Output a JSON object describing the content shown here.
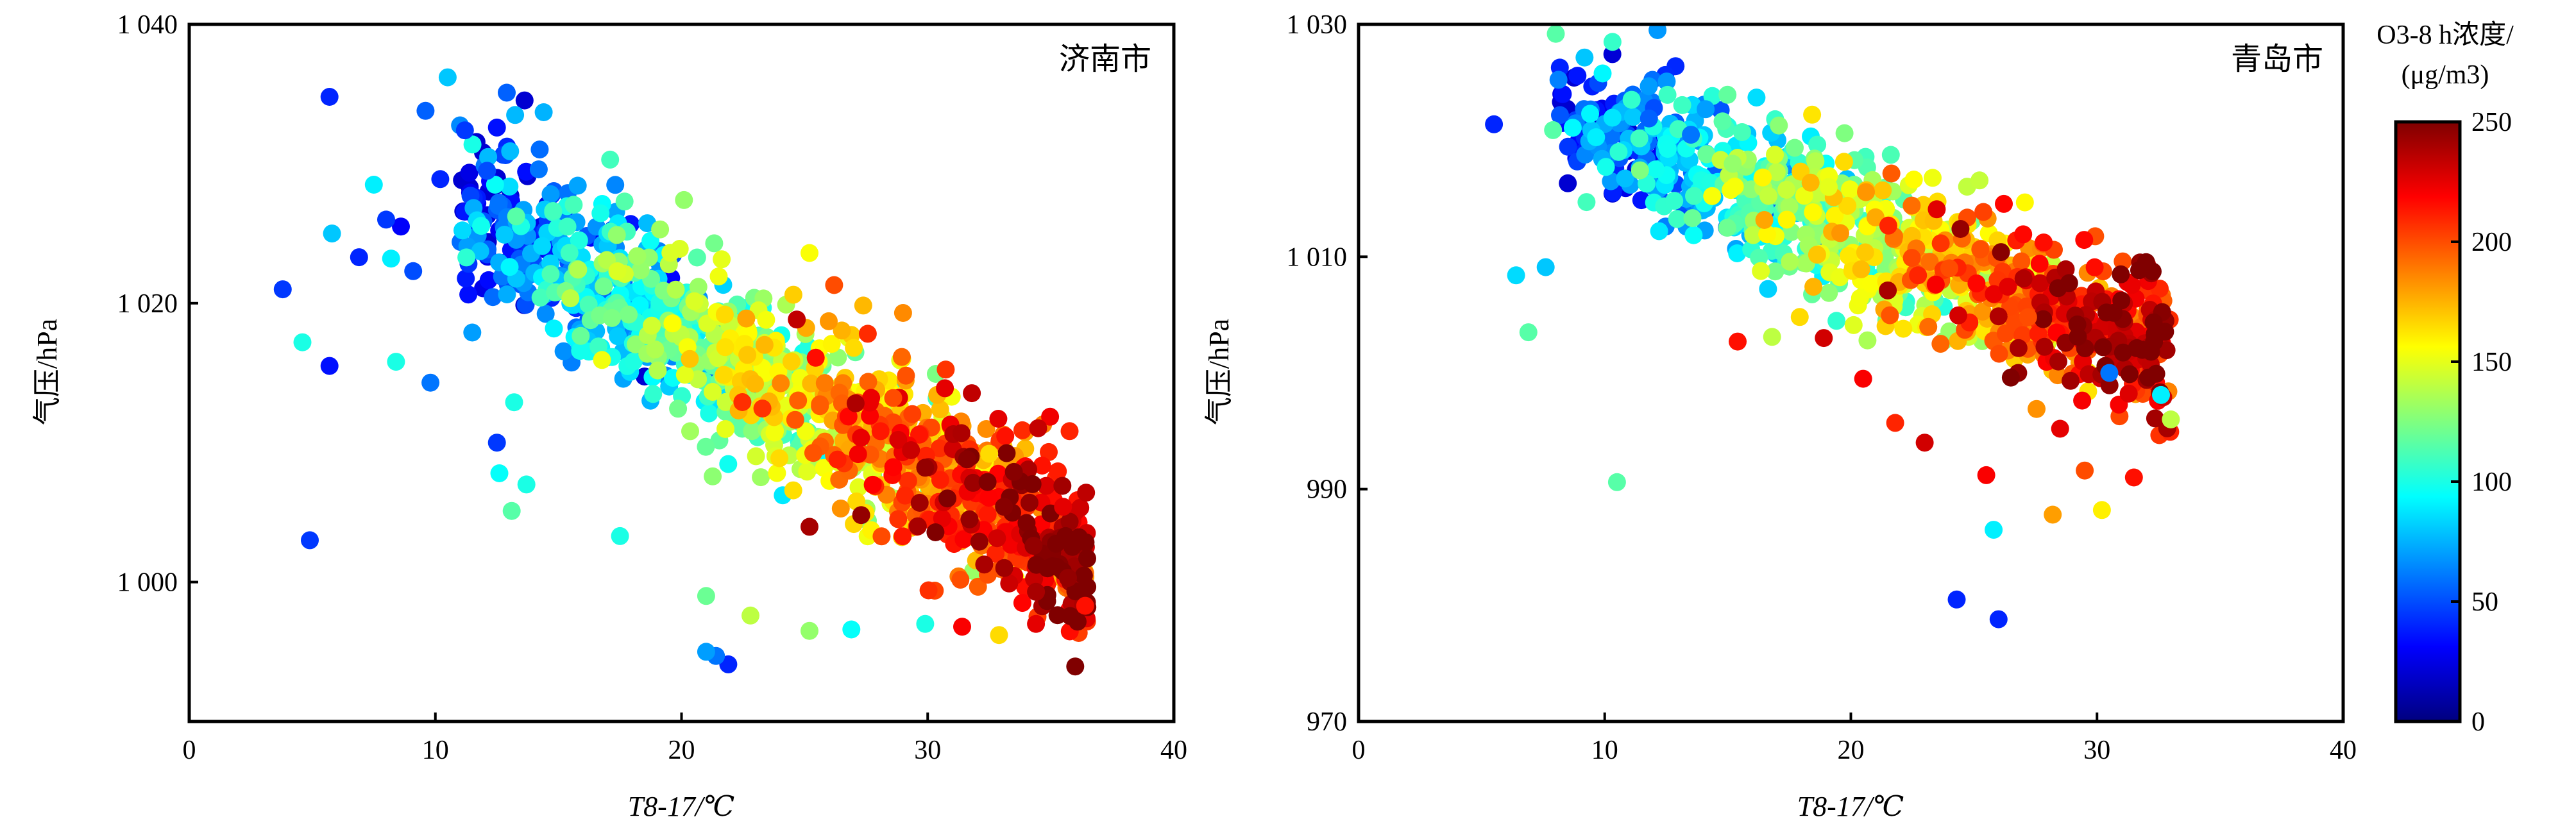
{
  "chart_data": [
    {
      "type": "scatter",
      "panel_label": "济南市",
      "xlabel": "T8-17/℃",
      "ylabel": "气压/hPa",
      "xlim": [
        0,
        40
      ],
      "ylim": [
        990,
        1040
      ],
      "xticks": [
        "0",
        "10",
        "20",
        "30",
        "40"
      ],
      "yticks": [
        "1 000",
        "1 020",
        "1 040"
      ],
      "ytick_values": [
        1000,
        1020,
        1040
      ],
      "color_by": "O3-8 h浓度",
      "trend": "pressure decreases as temperature rises; high O3 (red/dark red) concentrated at 27-36 ℃ and 1000-1010 hPa, low O3 (blue) at 4-15 ℃ and 1015-1037 hPa",
      "points": [
        {
          "x": 5.7,
          "y": 1034.8,
          "o3": 40
        },
        {
          "x": 10.5,
          "y": 1036.2,
          "o3": 80
        },
        {
          "x": 12.9,
          "y": 1035.1,
          "o3": 55
        },
        {
          "x": 9.6,
          "y": 1033.8,
          "o3": 55
        },
        {
          "x": 11.2,
          "y": 1032.4,
          "o3": 45
        },
        {
          "x": 12.5,
          "y": 1032.6,
          "o3": 35
        },
        {
          "x": 7.5,
          "y": 1028.5,
          "o3": 90
        },
        {
          "x": 10.2,
          "y": 1028.9,
          "o3": 40
        },
        {
          "x": 12.1,
          "y": 1029.5,
          "o3": 50
        },
        {
          "x": 8.0,
          "y": 1026.0,
          "o3": 45
        },
        {
          "x": 5.8,
          "y": 1025.0,
          "o3": 80
        },
        {
          "x": 8.6,
          "y": 1025.5,
          "o3": 30
        },
        {
          "x": 9.1,
          "y": 1022.3,
          "o3": 50
        },
        {
          "x": 6.9,
          "y": 1023.3,
          "o3": 40
        },
        {
          "x": 8.2,
          "y": 1023.2,
          "o3": 90
        },
        {
          "x": 3.8,
          "y": 1021.0,
          "o3": 45
        },
        {
          "x": 4.6,
          "y": 1017.2,
          "o3": 100
        },
        {
          "x": 5.7,
          "y": 1015.5,
          "o3": 35
        },
        {
          "x": 8.4,
          "y": 1015.8,
          "o3": 100
        },
        {
          "x": 9.8,
          "y": 1014.3,
          "o3": 60
        },
        {
          "x": 11.5,
          "y": 1017.9,
          "o3": 70
        },
        {
          "x": 12.5,
          "y": 1010.0,
          "o3": 45
        },
        {
          "x": 13.2,
          "y": 1012.9,
          "o3": 100
        },
        {
          "x": 12.6,
          "y": 1007.8,
          "o3": 95
        },
        {
          "x": 13.1,
          "y": 1005.1,
          "o3": 115
        },
        {
          "x": 4.9,
          "y": 1003.0,
          "o3": 45
        },
        {
          "x": 13.7,
          "y": 1007.0,
          "o3": 100
        },
        {
          "x": 17.5,
          "y": 1003.3,
          "o3": 100
        },
        {
          "x": 21.0,
          "y": 995.0,
          "o3": 70
        },
        {
          "x": 21.4,
          "y": 994.7,
          "o3": 60
        },
        {
          "x": 21.9,
          "y": 994.1,
          "o3": 40
        },
        {
          "x": 21.0,
          "y": 999.0,
          "o3": 120
        },
        {
          "x": 22.8,
          "y": 997.6,
          "o3": 140
        },
        {
          "x": 25.2,
          "y": 996.5,
          "o3": 130
        },
        {
          "x": 26.9,
          "y": 996.6,
          "o3": 95
        },
        {
          "x": 29.9,
          "y": 997.0,
          "o3": 100
        },
        {
          "x": 31.4,
          "y": 996.8,
          "o3": 220
        },
        {
          "x": 32.9,
          "y": 996.2,
          "o3": 165
        },
        {
          "x": 34.4,
          "y": 997.0,
          "o3": 225
        },
        {
          "x": 36.4,
          "y": 998.3,
          "o3": 215
        },
        {
          "x": 35.7,
          "y": 1000.3,
          "o3": 245
        },
        {
          "x": 34.4,
          "y": 999.3,
          "o3": 240
        },
        {
          "x": 35.5,
          "y": 1005.4,
          "o3": 225
        },
        {
          "x": 32.5,
          "y": 1009.2,
          "o3": 165
        },
        {
          "x": 31.6,
          "y": 1008.8,
          "o3": 248
        },
        {
          "x": 29.9,
          "y": 1008.2,
          "o3": 245
        },
        {
          "x": 30.7,
          "y": 1013.9,
          "o3": 225
        },
        {
          "x": 28.6,
          "y": 1013.2,
          "o3": 200
        },
        {
          "x": 27.0,
          "y": 1016.8,
          "o3": 165
        },
        {
          "x": 26.2,
          "y": 1021.3,
          "o3": 200
        },
        {
          "x": 25.2,
          "y": 1023.6,
          "o3": 155
        },
        {
          "x": 29.0,
          "y": 1019.3,
          "o3": 185
        },
        {
          "x": 20.1,
          "y": 1027.4,
          "o3": 130
        },
        {
          "x": 17.1,
          "y": 1030.3,
          "o3": 110
        },
        {
          "x": 14.4,
          "y": 1033.7,
          "o3": 75
        },
        {
          "x": 14.2,
          "y": 1029.6,
          "o3": 60
        },
        {
          "x": 30.8,
          "y": 1006.0,
          "o3": 250
        },
        {
          "x": 31.7,
          "y": 1004.5,
          "o3": 245
        },
        {
          "x": 33.1,
          "y": 1005.4,
          "o3": 248
        },
        {
          "x": 32.1,
          "y": 1002.9,
          "o3": 245
        },
        {
          "x": 29.6,
          "y": 1004.0,
          "o3": 240
        },
        {
          "x": 34.3,
          "y": 1002.6,
          "o3": 245
        },
        {
          "x": 27.3,
          "y": 1004.8,
          "o3": 245
        },
        {
          "x": 33.5,
          "y": 1007.9,
          "o3": 248
        }
      ]
    },
    {
      "type": "scatter",
      "panel_label": "青岛市",
      "xlabel": "T8-17/℃",
      "ylabel": "气压/hPa",
      "xlim": [
        0,
        40
      ],
      "ylim": [
        970,
        1030
      ],
      "xticks": [
        "0",
        "10",
        "20",
        "30",
        "40"
      ],
      "yticks": [
        "970",
        "990",
        "1 010",
        "1 030"
      ],
      "ytick_values": [
        970,
        990,
        1010,
        1030
      ],
      "color_by": "O3-8 h浓度",
      "trend": "pressure decreases as temperature rises; cluster between 6-33 ℃ and 986-1023 hPa, high O3 (red) at 22-32 ℃ and 990-1005 hPa",
      "points": [
        {
          "x": 5.5,
          "y": 1021.4,
          "o3": 40
        },
        {
          "x": 7.9,
          "y": 1020.9,
          "o3": 115
        },
        {
          "x": 6.4,
          "y": 1008.4,
          "o3": 85
        },
        {
          "x": 7.6,
          "y": 1009.1,
          "o3": 80
        },
        {
          "x": 6.9,
          "y": 1003.5,
          "o3": 115
        },
        {
          "x": 10.5,
          "y": 990.6,
          "o3": 115
        },
        {
          "x": 12.0,
          "y": 1022.8,
          "o3": 50
        },
        {
          "x": 14.1,
          "y": 1022.7,
          "o3": 70
        },
        {
          "x": 11.8,
          "y": 1021.9,
          "o3": 55
        },
        {
          "x": 13.5,
          "y": 1020.5,
          "o3": 60
        },
        {
          "x": 24.3,
          "y": 980.5,
          "o3": 40
        },
        {
          "x": 26.0,
          "y": 978.8,
          "o3": 40
        },
        {
          "x": 25.8,
          "y": 986.5,
          "o3": 90
        },
        {
          "x": 28.2,
          "y": 987.8,
          "o3": 180
        },
        {
          "x": 30.2,
          "y": 988.2,
          "o3": 160
        },
        {
          "x": 31.5,
          "y": 991.0,
          "o3": 215
        },
        {
          "x": 33.0,
          "y": 996.0,
          "o3": 140
        },
        {
          "x": 32.6,
          "y": 998.1,
          "o3": 90
        },
        {
          "x": 30.5,
          "y": 1000.0,
          "o3": 60
        },
        {
          "x": 26.1,
          "y": 1010.4,
          "o3": 248
        },
        {
          "x": 21.5,
          "y": 1007.1,
          "o3": 240
        },
        {
          "x": 26.5,
          "y": 999.6,
          "o3": 250
        },
        {
          "x": 26.8,
          "y": 1000.0,
          "o3": 245
        },
        {
          "x": 27.2,
          "y": 1004.8,
          "o3": 200
        },
        {
          "x": 19.1,
          "y": 1016.0,
          "o3": 150
        },
        {
          "x": 15.2,
          "y": 1018.0,
          "o3": 130
        },
        {
          "x": 24.0,
          "y": 1009.0,
          "o3": 200
        },
        {
          "x": 28.5,
          "y": 995.2,
          "o3": 225
        },
        {
          "x": 29.5,
          "y": 991.6,
          "o3": 200
        },
        {
          "x": 25.5,
          "y": 991.2,
          "o3": 220
        },
        {
          "x": 23.0,
          "y": 994.0,
          "o3": 230
        },
        {
          "x": 21.8,
          "y": 995.7,
          "o3": 210
        },
        {
          "x": 20.5,
          "y": 999.5,
          "o3": 220
        },
        {
          "x": 18.9,
          "y": 1003.0,
          "o3": 230
        },
        {
          "x": 16.8,
          "y": 1003.1,
          "o3": 140
        },
        {
          "x": 15.4,
          "y": 1002.7,
          "o3": 215
        }
      ]
    }
  ],
  "colorbar": {
    "title_line1": "O3-8 h浓度/",
    "title_line2": "(μg/m3)",
    "ticks": [
      "0",
      "50",
      "100",
      "150",
      "200",
      "250"
    ],
    "tick_values": [
      0,
      50,
      100,
      150,
      200,
      250
    ],
    "range": [
      0,
      250
    ],
    "colormap": "jet"
  }
}
